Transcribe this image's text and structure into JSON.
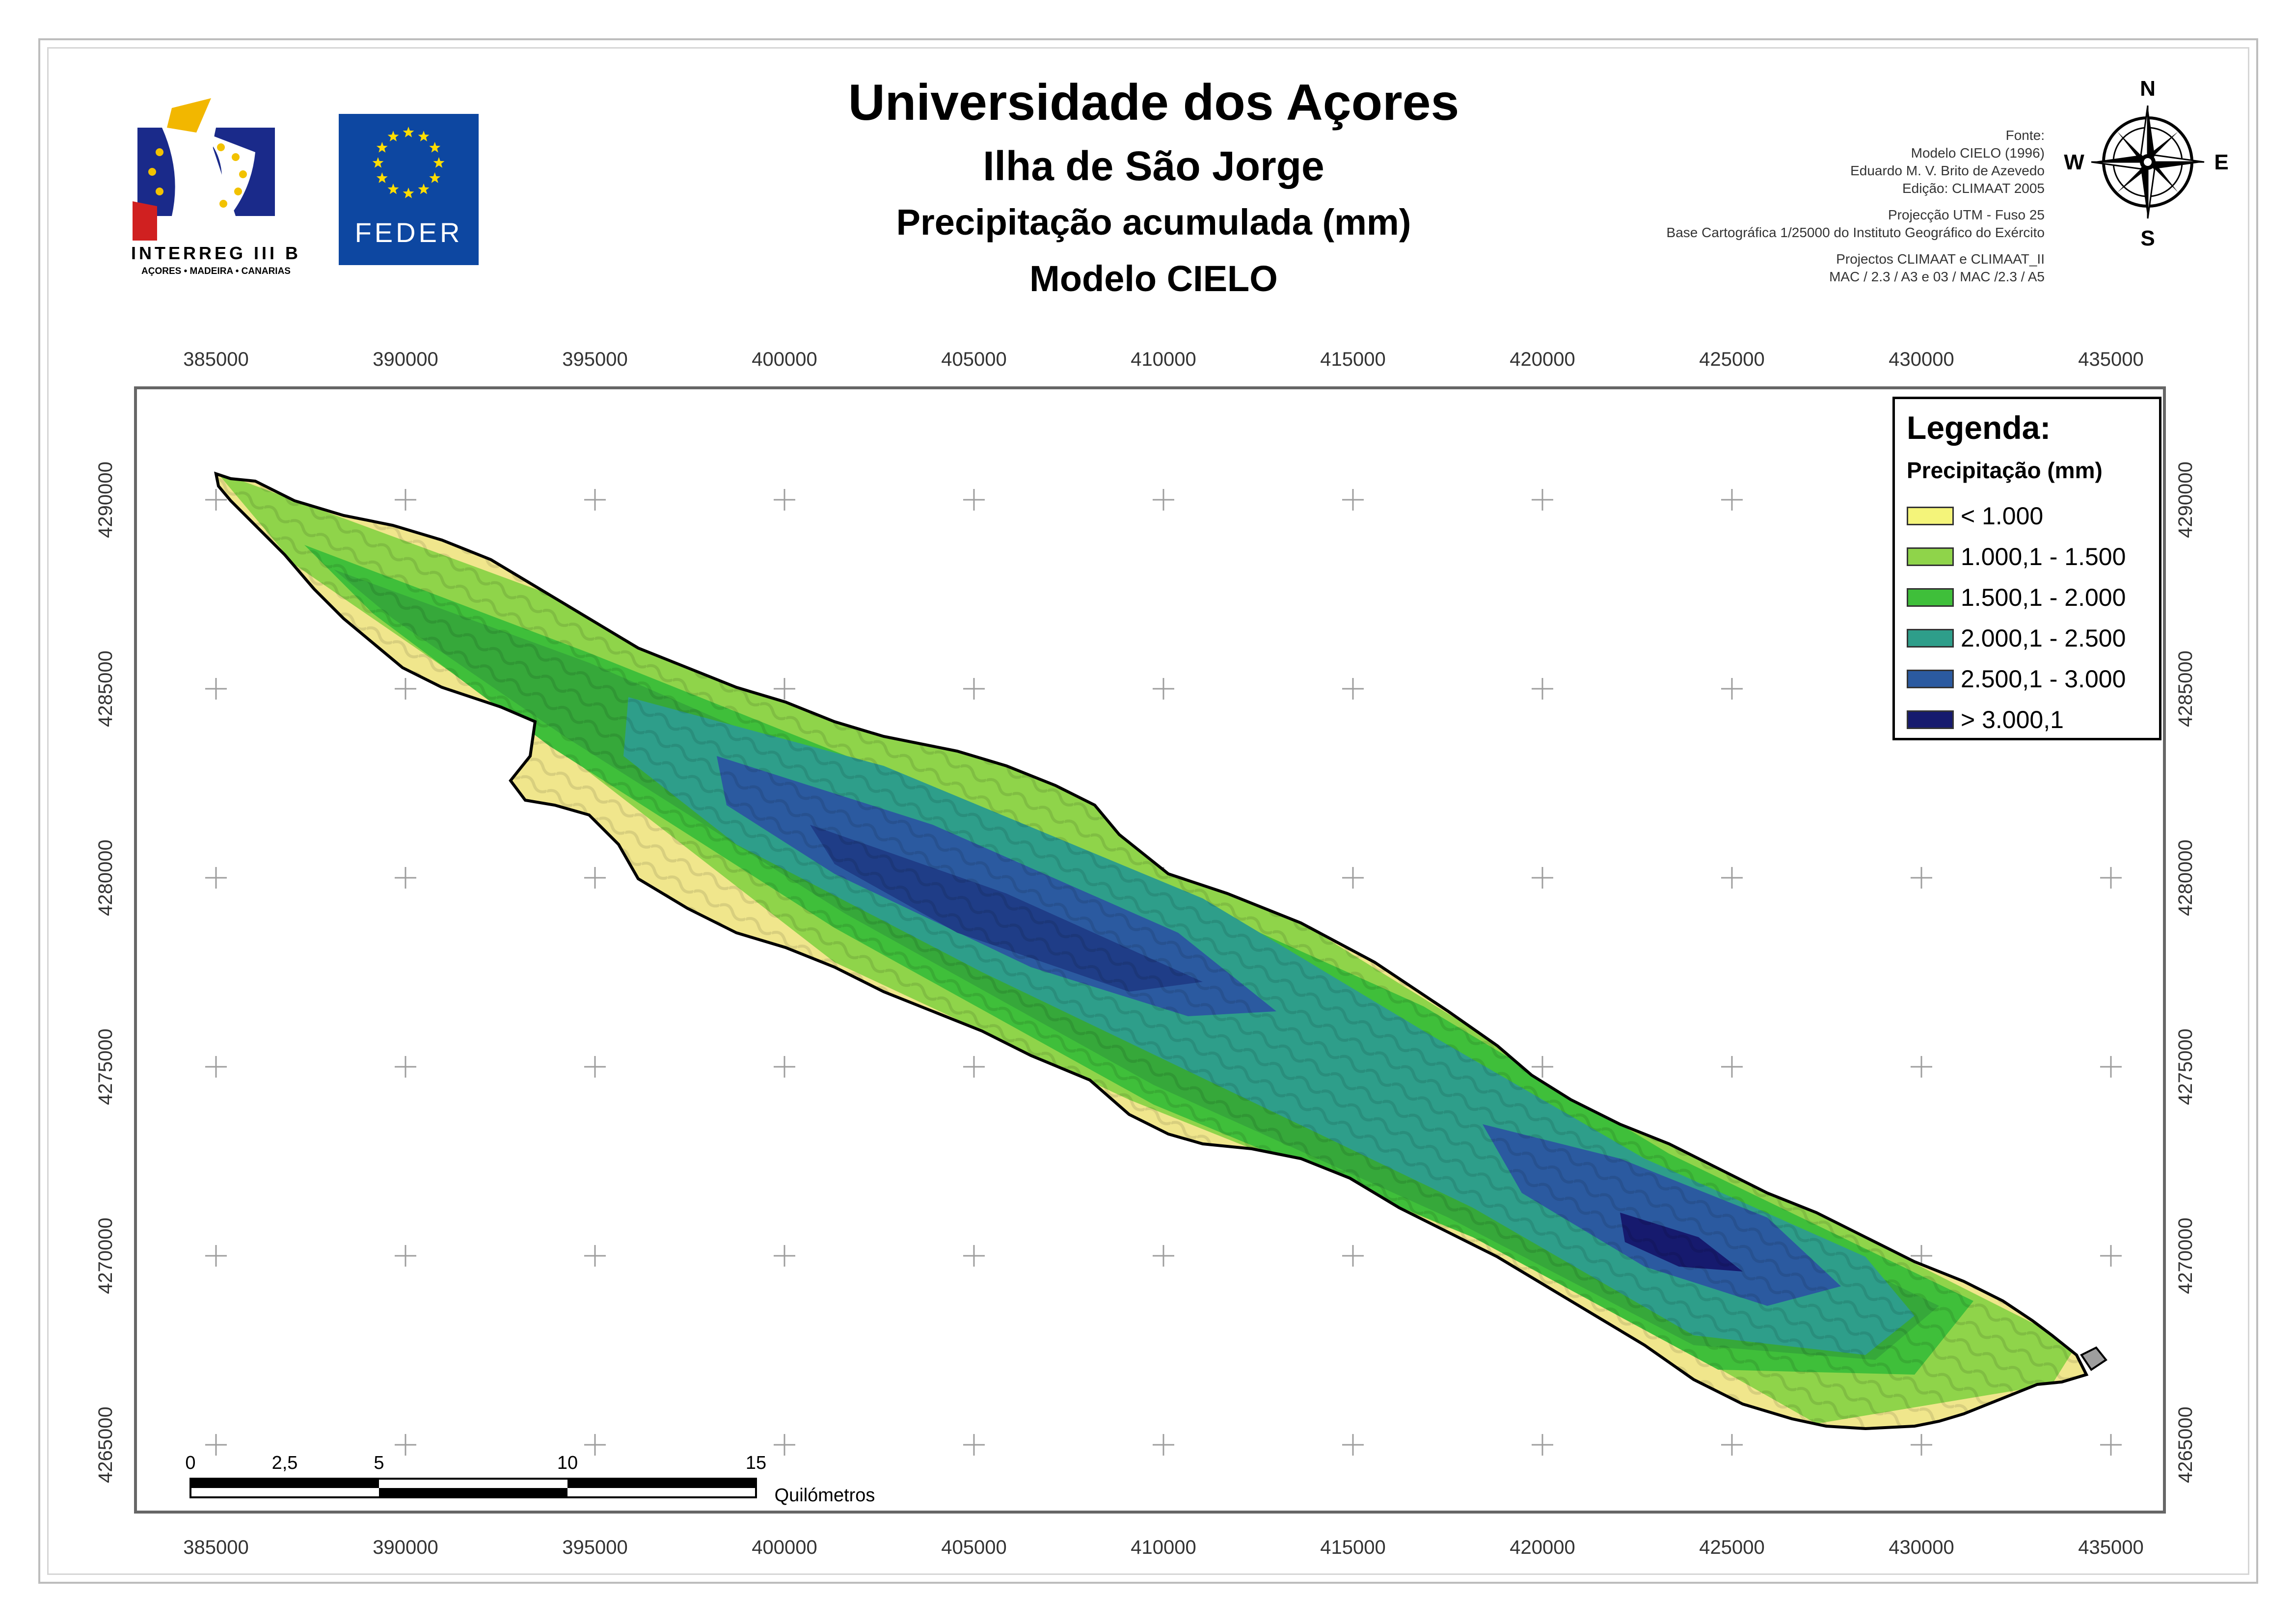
{
  "titles": {
    "main": "Universidade dos Açores",
    "island": "Ilha de São Jorge",
    "variable": "Precipitação acumulada (mm)",
    "model": "Modelo CIELO"
  },
  "credits": [
    "Fonte:",
    "Modelo CIELO (1996)",
    "Eduardo M. V. Brito de Azevedo",
    "Edição: CLIMAAT 2005",
    "Projecção UTM - Fuso 25",
    "Base Cartográfica 1/25000 do Instituto Geográfico do Exército",
    "Projectos CLIMAAT e CLIMAAT_II",
    "MAC / 2.3 / A3 e 03 / MAC /2.3 / A5"
  ],
  "logos": {
    "interreg_line1": "INTERREG III B",
    "interreg_line2": "AÇORES • MADEIRA • CANARIAS",
    "feder": "FEDER"
  },
  "compass": {
    "n": "N",
    "s": "S",
    "e": "E",
    "w": "W"
  },
  "legend": {
    "title": "Legenda:",
    "subtitle": "Precipitação (mm)",
    "items": [
      {
        "label": "< 1.000",
        "color": "#f4f47a"
      },
      {
        "label": "1.000,1 - 1.500",
        "color": "#8fd44a"
      },
      {
        "label": "1.500,1 - 2.000",
        "color": "#3fbf3a"
      },
      {
        "label": "2.000,1 - 2.500",
        "color": "#2e9e8a"
      },
      {
        "label": "2.500,1 - 3.000",
        "color": "#2b5aa0"
      },
      {
        "label": "> 3.000,1",
        "color": "#161a6e"
      }
    ]
  },
  "axes": {
    "x_ticks": [
      "385000",
      "390000",
      "395000",
      "400000",
      "405000",
      "410000",
      "415000",
      "420000",
      "425000",
      "430000",
      "435000"
    ],
    "y_ticks": [
      "4290000",
      "4285000",
      "4280000",
      "4275000",
      "4270000",
      "4265000"
    ]
  },
  "scalebar": {
    "labels": [
      "0",
      "2,5",
      "5",
      "10",
      "15"
    ],
    "unit": "Quilómetros"
  }
}
